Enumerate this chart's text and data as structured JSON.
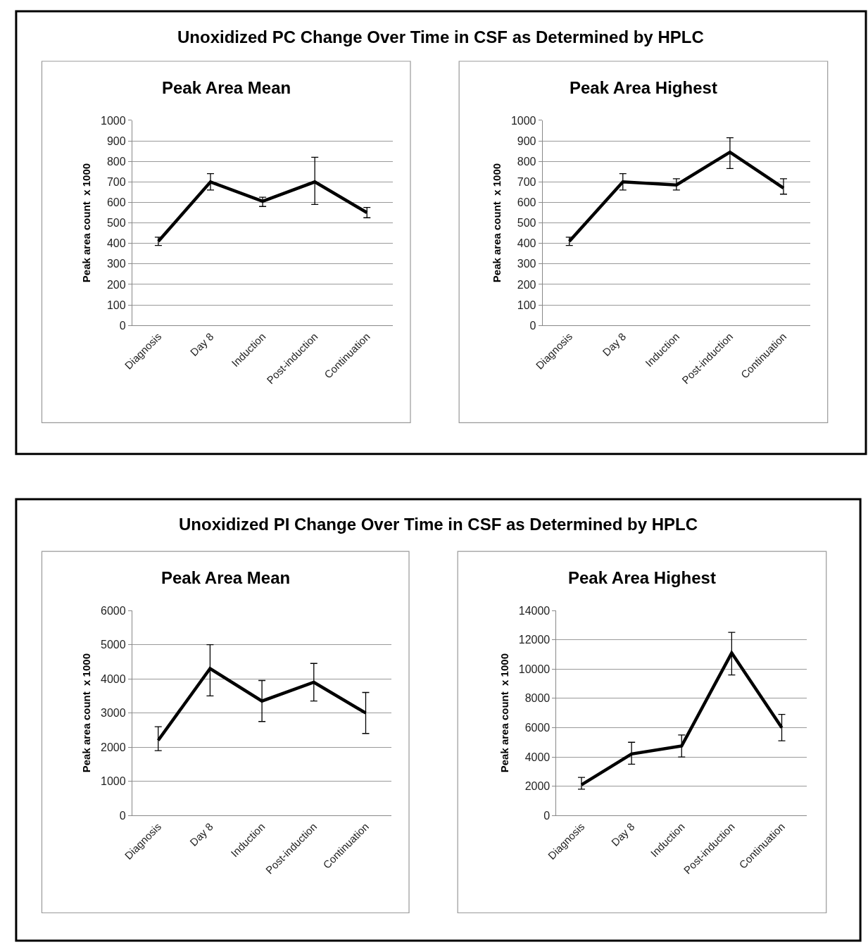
{
  "chart_data": [
    {
      "type": "line",
      "title": "Peak Area Mean",
      "annotations": [
        "Unoxidized PC Change Over Time in CSF as Determined by HPLC"
      ],
      "ylabel": "Peak area count  x 1000",
      "categories": [
        "Diagnosis",
        "Day 8",
        "Induction",
        "Post-induction",
        "Continuation"
      ],
      "series": [
        {
          "color": "#000000",
          "values": [
            410,
            700,
            605,
            700,
            550
          ],
          "errors": [
            [
              390,
              430
            ],
            [
              660,
              740
            ],
            [
              580,
              625
            ],
            [
              590,
              820
            ],
            [
              525,
              575
            ]
          ]
        }
      ],
      "ylim": [
        0,
        1000
      ],
      "yticks": [
        0,
        100,
        200,
        300,
        400,
        500,
        600,
        700,
        800,
        900,
        1000
      ],
      "grid": "y"
    },
    {
      "type": "line",
      "title": "Peak Area Highest",
      "ylabel": "Peak area count  x 1000",
      "categories": [
        "Diagnosis",
        "Day 8",
        "Induction",
        "Post-induction",
        "Continuation"
      ],
      "series": [
        {
          "color": "#000000",
          "values": [
            410,
            700,
            685,
            845,
            670
          ],
          "errors": [
            [
              390,
              430
            ],
            [
              660,
              740
            ],
            [
              660,
              715
            ],
            [
              765,
              915
            ],
            [
              640,
              715
            ]
          ]
        }
      ],
      "ylim": [
        0,
        1000
      ],
      "yticks": [
        0,
        100,
        200,
        300,
        400,
        500,
        600,
        700,
        800,
        900,
        1000
      ],
      "grid": "y"
    },
    {
      "type": "line",
      "title": "Peak Area Mean",
      "annotations": [
        "Unoxidized PI Change Over Time in CSF as Determined by HPLC"
      ],
      "ylabel": "Peak area count  x 1000",
      "categories": [
        "Diagnosis",
        "Day 8",
        "Induction",
        "Post-induction",
        "Continuation"
      ],
      "series": [
        {
          "color": "#000000",
          "values": [
            2200,
            4300,
            3350,
            3900,
            3000
          ],
          "errors": [
            [
              1900,
              2600
            ],
            [
              3500,
              5000
            ],
            [
              2750,
              3950
            ],
            [
              3350,
              4450
            ],
            [
              2400,
              3600
            ]
          ]
        }
      ],
      "ylim": [
        0,
        6000
      ],
      "yticks": [
        0,
        1000,
        2000,
        3000,
        4000,
        5000,
        6000
      ],
      "grid": "y"
    },
    {
      "type": "line",
      "title": "Peak Area Highest",
      "ylabel": "Peak area count  x 1000",
      "categories": [
        "Diagnosis",
        "Day 8",
        "Induction",
        "Post-induction",
        "Continuation"
      ],
      "series": [
        {
          "color": "#000000",
          "values": [
            2100,
            4200,
            4750,
            11100,
            6000
          ],
          "errors": [
            [
              1800,
              2600
            ],
            [
              3500,
              5000
            ],
            [
              4000,
              5500
            ],
            [
              9600,
              12500
            ],
            [
              5100,
              6900
            ]
          ]
        }
      ],
      "ylim": [
        0,
        14000
      ],
      "yticks": [
        0,
        2000,
        4000,
        6000,
        8000,
        10000,
        12000,
        14000
      ],
      "grid": "y"
    }
  ]
}
